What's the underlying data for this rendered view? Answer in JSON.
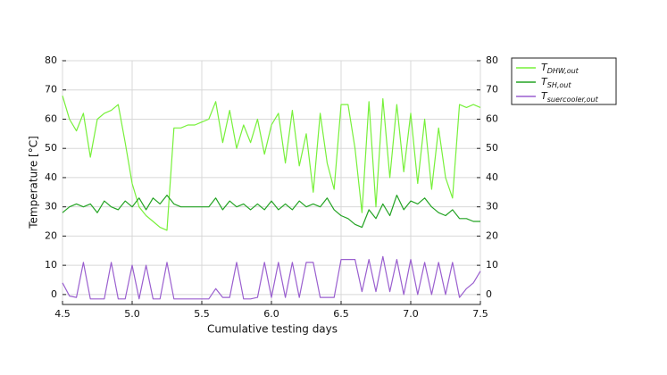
{
  "chart_data": {
    "type": "line",
    "x_label": "Cumulative testing days",
    "y_label": "Temperature [°C]",
    "x": [
      4.5,
      4.55,
      4.6,
      4.65,
      4.7,
      4.75,
      4.8,
      4.85,
      4.9,
      4.95,
      5.0,
      5.05,
      5.1,
      5.15,
      5.2,
      5.25,
      5.3,
      5.35,
      5.4,
      5.45,
      5.5,
      5.55,
      5.6,
      5.65,
      5.7,
      5.75,
      5.8,
      5.85,
      5.9,
      5.95,
      6.0,
      6.05,
      6.1,
      6.15,
      6.2,
      6.25,
      6.3,
      6.35,
      6.4,
      6.45,
      6.5,
      6.55,
      6.6,
      6.65,
      6.7,
      6.75,
      6.8,
      6.85,
      6.9,
      6.95,
      7.0,
      7.05,
      7.1,
      7.15,
      7.2,
      7.25,
      7.3,
      7.35,
      7.4,
      7.45,
      7.5
    ],
    "series": [
      {
        "name": "T",
        "subscript": "DHW,out",
        "color": "#77f03a",
        "values": [
          68,
          60,
          56,
          62,
          47,
          60,
          62,
          63,
          65,
          52,
          38,
          30,
          27,
          25,
          23,
          22,
          57,
          57,
          58,
          58,
          59,
          60,
          66,
          52,
          63,
          50,
          58,
          52,
          60,
          48,
          58,
          62,
          45,
          63,
          44,
          55,
          35,
          62,
          45,
          36,
          65,
          65,
          50,
          28,
          66,
          30,
          67,
          40,
          65,
          42,
          62,
          38,
          60,
          36,
          57,
          40,
          33,
          65,
          64,
          65,
          64
        ]
      },
      {
        "name": "T",
        "subscript": "SH,out",
        "color": "#23a323",
        "values": [
          28,
          30,
          31,
          30,
          31,
          28,
          32,
          30,
          29,
          32,
          30,
          33,
          29,
          33,
          31,
          34,
          31,
          30,
          30,
          30,
          30,
          30,
          33,
          29,
          32,
          30,
          31,
          29,
          31,
          29,
          32,
          29,
          31,
          29,
          32,
          30,
          31,
          30,
          33,
          29,
          27,
          26,
          24,
          23,
          29,
          26,
          31,
          27,
          34,
          29,
          32,
          31,
          33,
          30,
          28,
          27,
          29,
          26,
          26,
          25,
          25
        ]
      },
      {
        "name": "T",
        "subscript": "suercooler,out",
        "color": "#9a5fcf",
        "values": [
          4,
          -0.5,
          -1,
          11,
          -1.5,
          -1.5,
          -1.5,
          11,
          -1.5,
          -1.5,
          10,
          -1.5,
          10,
          -1.5,
          -1.5,
          11,
          -1.5,
          -1.5,
          -1.5,
          -1.5,
          -1.5,
          -1.5,
          2,
          -1,
          -1,
          11,
          -1.5,
          -1.5,
          -1,
          11,
          -1,
          11,
          -1,
          11,
          -1,
          11,
          11,
          -1,
          -1,
          -1,
          12,
          12,
          12,
          1,
          12,
          1,
          13,
          1,
          12,
          0,
          12,
          0,
          11,
          0,
          11,
          0,
          11,
          -1,
          2,
          4,
          8
        ]
      }
    ],
    "xlim": [
      4.5,
      7.5
    ],
    "xticks": [
      4.5,
      {
        "value": 5,
        "label": "5.0"
      },
      5.5,
      {
        "value": 6,
        "label": "6.0"
      },
      6.5,
      {
        "value": 7,
        "label": "7.0"
      },
      7.5
    ],
    "ylim": [
      -3.4,
      80
    ],
    "yticks": [
      0,
      10,
      20,
      30,
      40,
      50,
      60,
      70,
      80
    ],
    "y2lim": [
      -3.4,
      80
    ],
    "y2ticks": [
      0,
      10,
      20,
      30,
      40,
      50,
      60,
      70,
      80
    ],
    "grid": true,
    "legend": "outside-right"
  }
}
